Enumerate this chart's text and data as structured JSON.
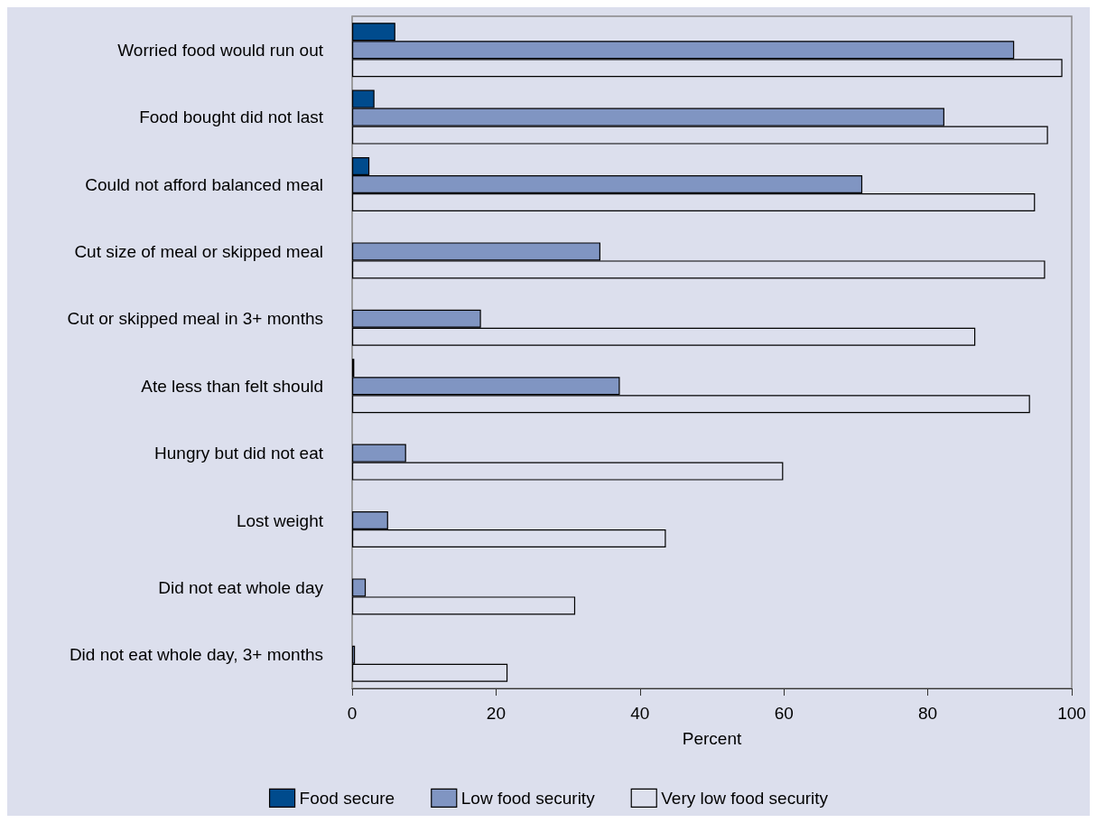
{
  "chart_data": {
    "type": "bar",
    "orientation": "horizontal",
    "xlabel": "Percent",
    "categories": [
      "Worried food would run out",
      "Food bought did not last",
      "Could not afford balanced meal",
      "Cut size of meal or skipped meal",
      "Cut or skipped meal in 3+ months",
      "Ate less than felt should",
      "Hungry but did not eat",
      "Lost weight",
      "Did not eat whole day",
      "Did not eat whole day, 3+ months"
    ],
    "series": [
      {
        "name": "Food secure",
        "color": "#004b8d",
        "values": [
          6.0,
          3.1,
          2.4,
          null,
          null,
          0.3,
          null,
          null,
          null,
          null
        ]
      },
      {
        "name": "Low food security",
        "color": "#8095c2",
        "values": [
          92.0,
          82.3,
          70.9,
          34.5,
          17.9,
          37.2,
          7.5,
          5.0,
          1.9,
          0.4
        ]
      },
      {
        "name": "Very low food security",
        "color": "#dcdfed",
        "values": [
          98.7,
          96.7,
          94.9,
          96.3,
          86.6,
          94.2,
          59.9,
          43.6,
          31.0,
          21.6
        ]
      }
    ],
    "xlim": [
      0,
      100
    ],
    "xticks": [
      0,
      20,
      40,
      60,
      80,
      100
    ],
    "grid": false,
    "legend": "bottom"
  }
}
